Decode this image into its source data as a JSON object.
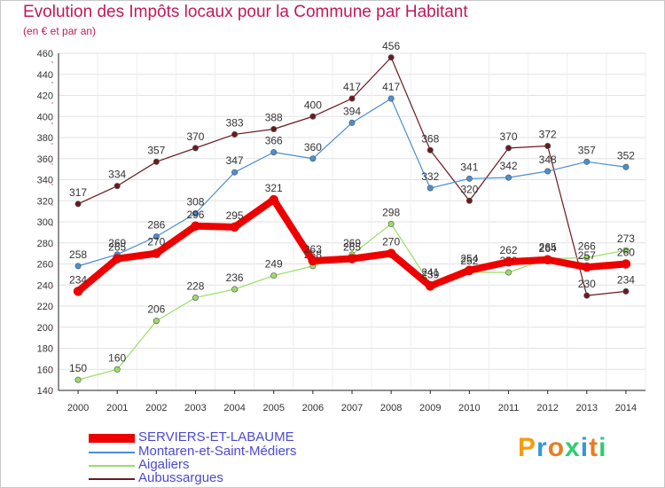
{
  "title": "Evolution des Impôts locaux pour la Commune par Habitant",
  "subtitle": "(en € et par an)",
  "logo": "Proxiti",
  "chart_data": {
    "type": "line",
    "title": "Evolution des Impôts locaux pour la Commune par Habitant",
    "ylabel": "(en € et par an)",
    "xlabel": "",
    "categories": [
      "2000",
      "2001",
      "2002",
      "2003",
      "2004",
      "2005",
      "2006",
      "2007",
      "2008",
      "2009",
      "2010",
      "2011",
      "2012",
      "2013",
      "2014"
    ],
    "yticks": [
      "140",
      "160",
      "180",
      "200",
      "220",
      "240",
      "260",
      "280",
      "300",
      "320",
      "340",
      "360",
      "380",
      "400",
      "420",
      "440",
      "460"
    ],
    "ylim": [
      140,
      460
    ],
    "grid": true,
    "legend_position": "bottom-left",
    "series": [
      {
        "name": "Aubussargues",
        "color": "#6b1a1e",
        "values": [
          317,
          334,
          357,
          370,
          383,
          388,
          400,
          417,
          456,
          368,
          320,
          370,
          372,
          230,
          234
        ],
        "labels": [
          "317",
          "334",
          "357",
          "370",
          "383",
          "388",
          "400",
          "417",
          "456",
          "368",
          "320",
          "370",
          "372",
          "230",
          "234"
        ]
      },
      {
        "name": "Montaren-et-Saint-Médiers",
        "color": "#4a8fd0",
        "values": [
          258,
          269,
          286,
          308,
          347,
          366,
          360,
          394,
          417,
          332,
          341,
          342,
          348,
          357,
          352
        ],
        "labels": [
          "258",
          "269",
          "286",
          "308",
          "347",
          "366",
          "360",
          "394",
          "417",
          "332",
          "341",
          "342",
          "348",
          "357",
          "352"
        ]
      },
      {
        "name": "Aigaliers",
        "color": "#99dd66",
        "values": [
          150,
          160,
          206,
          228,
          236,
          249,
          258,
          269,
          298,
          241,
          252,
          252,
          265,
          266,
          273
        ],
        "labels": [
          "150",
          "160",
          "206",
          "228",
          "236",
          "249",
          "258",
          "269",
          "298",
          "241",
          "252",
          "252",
          "265",
          "266",
          "273"
        ]
      },
      {
        "name": "SERVIERS-ET-LABAUME",
        "color": "#ee0000",
        "values": [
          234,
          265,
          270,
          296,
          295,
          321,
          263,
          265,
          270,
          239,
          254,
          262,
          264,
          257,
          260
        ],
        "labels": [
          "234",
          "265",
          "270",
          "296",
          "295",
          "321",
          "263",
          "265",
          "270",
          "239",
          "254",
          "262",
          "264",
          "257",
          "260"
        ]
      }
    ],
    "legend": [
      {
        "name": "SERVIERS-ET-LABAUME",
        "color": "#ee0000"
      },
      {
        "name": "Montaren-et-Saint-Médiers",
        "color": "#4a8fd0"
      },
      {
        "name": "Aigaliers",
        "color": "#99dd66"
      },
      {
        "name": "Aubussargues",
        "color": "#6b1a1e"
      }
    ]
  }
}
